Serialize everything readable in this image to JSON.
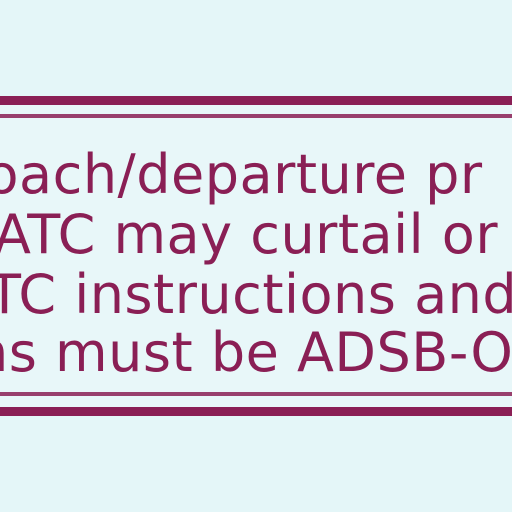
{
  "notice": {
    "lines": [
      "roach/departure pr",
      "ATC may curtail or m",
      "TC instructions and",
      "ns must be ADSB-O"
    ]
  },
  "colors": {
    "background": "#e4f6f8",
    "accent": "#8a1f55"
  }
}
